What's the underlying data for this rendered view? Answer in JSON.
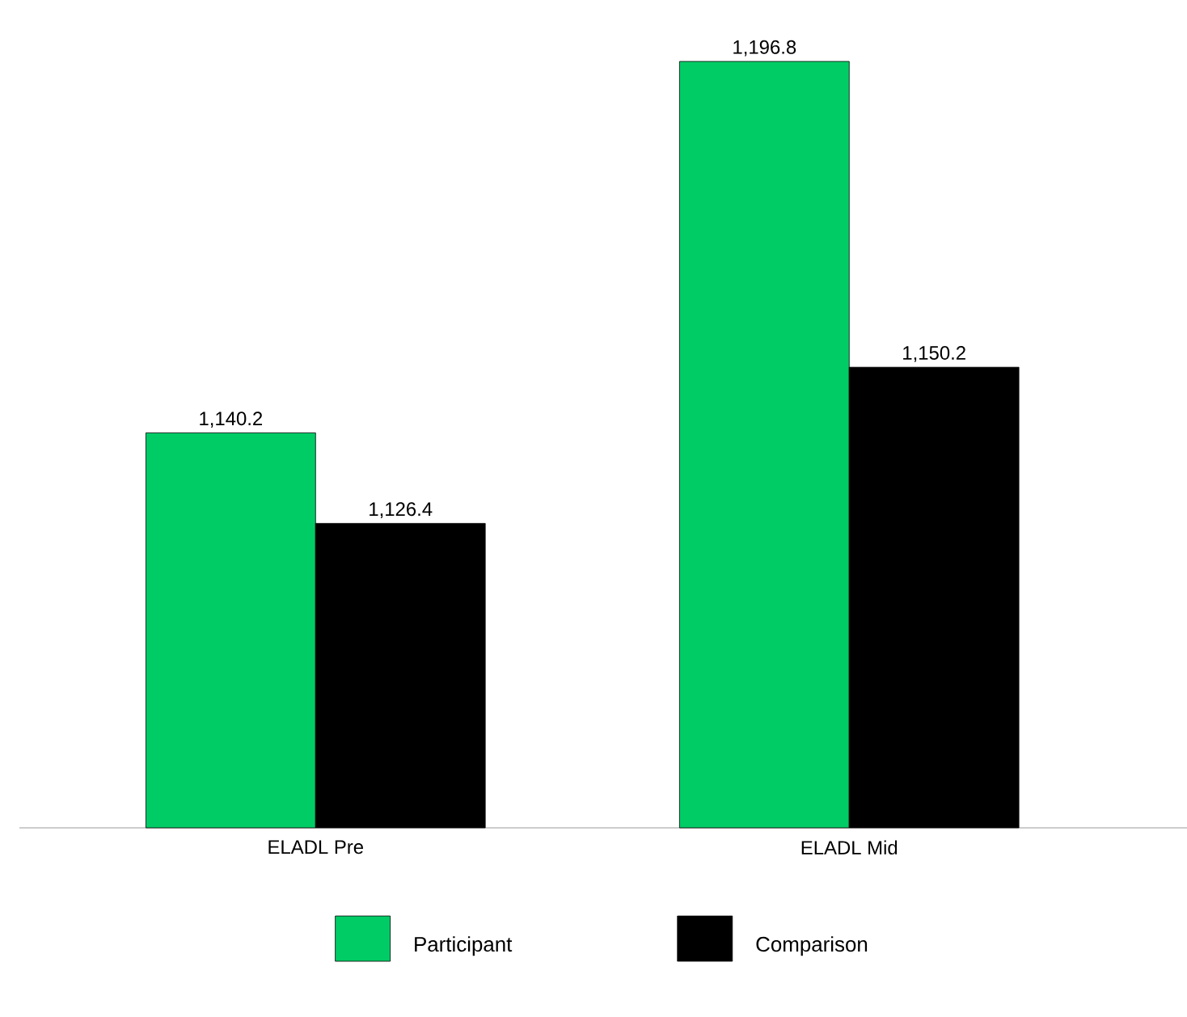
{
  "chart_data": {
    "type": "bar",
    "categories": [
      "ELADL Pre",
      "ELADL Mid"
    ],
    "series": [
      {
        "name": "Participant",
        "color": "#00cc66",
        "values": [
          1140.2,
          1196.8
        ],
        "value_labels": [
          "1,140.2",
          "1,196.8"
        ]
      },
      {
        "name": "Comparison",
        "color": "#000000",
        "values": [
          1126.4,
          1150.2
        ],
        "value_labels": [
          "1,126.4",
          "1,150.2"
        ]
      }
    ],
    "ylim": [
      1080,
      1196.8
    ],
    "tick_labels": "x",
    "legend": "bottom",
    "grid": false
  }
}
